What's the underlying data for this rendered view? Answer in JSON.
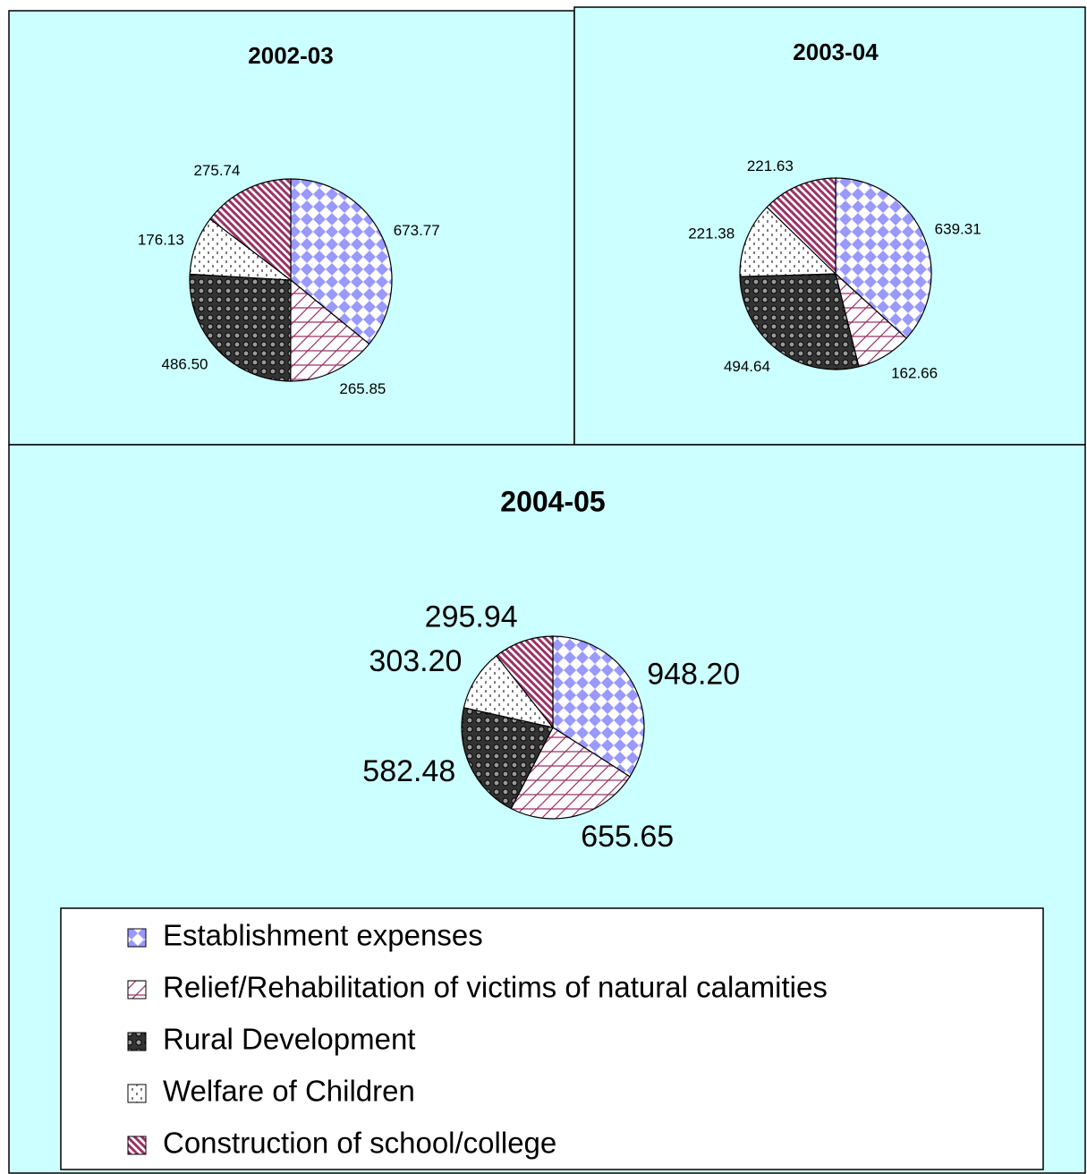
{
  "chart_data": [
    {
      "type": "pie",
      "title": "2002-03",
      "values": [
        673.77,
        265.85,
        486.5,
        176.13,
        275.74
      ],
      "value_labels": [
        "673.77",
        "265.85",
        "486.50",
        "176.13",
        "275.74"
      ]
    },
    {
      "type": "pie",
      "title": "2003-04",
      "values": [
        639.31,
        162.66,
        494.64,
        221.38,
        221.63
      ],
      "value_labels": [
        "639.31",
        "162.66",
        "494.64",
        "221.38",
        "221.63"
      ]
    },
    {
      "type": "pie",
      "title": "2004-05",
      "values": [
        948.2,
        655.65,
        582.48,
        303.2,
        295.94
      ],
      "value_labels": [
        "948.20",
        "655.65",
        "582.48",
        "303.20",
        "295.94"
      ]
    }
  ],
  "legend": {
    "labels": [
      "Establishment expenses",
      "Relief/Rehabilitation of victims of natural calamities",
      "Rural Development",
      "Welfare of Children",
      "Construction of school/college"
    ],
    "colors": [
      "#9999ff",
      "#993366",
      "#333333",
      "#000000",
      "#993366"
    ]
  }
}
